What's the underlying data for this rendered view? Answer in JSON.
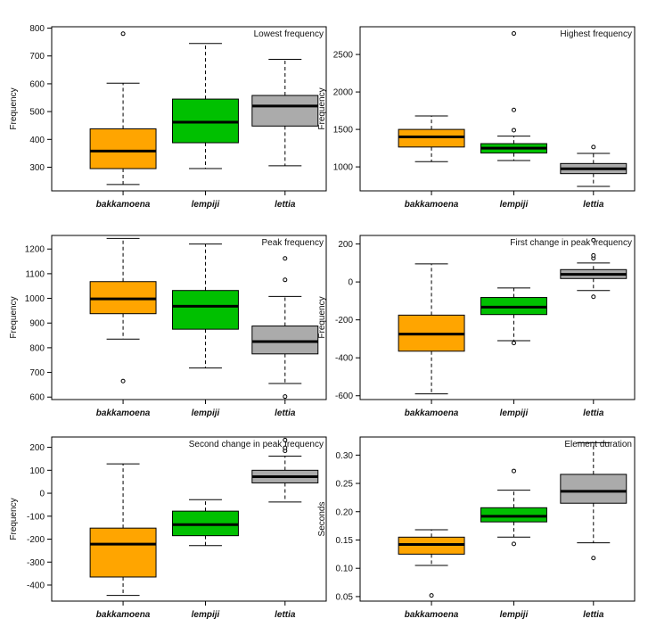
{
  "figure": {
    "type": "boxplot-grid",
    "grid": "3x2",
    "colors": {
      "bakkamoena": "#FFA500",
      "lempiji": "#00C000",
      "lettia": "#ABABAB"
    }
  },
  "chart_data": [
    {
      "type": "box",
      "title": "Lowest frequency",
      "ylabel": "Frequency",
      "xlabel": "",
      "ylim": [
        215,
        805
      ],
      "yticks": [
        300,
        400,
        500,
        600,
        700,
        800
      ],
      "categories": [
        "bakkamoena",
        "lempiji",
        "lettia"
      ],
      "boxes": [
        {
          "category": "bakkamoena",
          "min": 238,
          "q1": 295,
          "median": 358,
          "q3": 438,
          "max": 602,
          "outliers": [
            780
          ]
        },
        {
          "category": "lempiji",
          "min": 295,
          "q1": 388,
          "median": 462,
          "q3": 545,
          "max": 745,
          "outliers": []
        },
        {
          "category": "lettia",
          "min": 305,
          "q1": 448,
          "median": 520,
          "q3": 558,
          "max": 688,
          "outliers": []
        }
      ]
    },
    {
      "type": "box",
      "title": "Highest frequency",
      "ylabel": "Frequency",
      "xlabel": "",
      "ylim": [
        680,
        2870
      ],
      "yticks": [
        1000,
        1500,
        2000,
        2500
      ],
      "categories": [
        "bakkamoena",
        "lempiji",
        "lettia"
      ],
      "boxes": [
        {
          "category": "bakkamoena",
          "min": 1070,
          "q1": 1265,
          "median": 1400,
          "q3": 1500,
          "max": 1680,
          "outliers": []
        },
        {
          "category": "lempiji",
          "min": 1085,
          "q1": 1185,
          "median": 1250,
          "q3": 1310,
          "max": 1410,
          "outliers": [
            1490,
            1760,
            2780
          ]
        },
        {
          "category": "lettia",
          "min": 740,
          "q1": 910,
          "median": 975,
          "q3": 1045,
          "max": 1180,
          "outliers": [
            1265
          ]
        }
      ]
    },
    {
      "type": "box",
      "title": "Peak frequency",
      "ylabel": "Frequency",
      "xlabel": "",
      "ylim": [
        590,
        1255
      ],
      "yticks": [
        600,
        700,
        800,
        900,
        1000,
        1100,
        1200
      ],
      "categories": [
        "bakkamoena",
        "lempiji",
        "lettia"
      ],
      "boxes": [
        {
          "category": "bakkamoena",
          "min": 835,
          "q1": 938,
          "median": 998,
          "q3": 1068,
          "max": 1243,
          "outliers": [
            665
          ]
        },
        {
          "category": "lempiji",
          "min": 718,
          "q1": 875,
          "median": 968,
          "q3": 1032,
          "max": 1220,
          "outliers": []
        },
        {
          "category": "lettia",
          "min": 655,
          "q1": 775,
          "median": 825,
          "q3": 888,
          "max": 1008,
          "outliers": [
            602,
            1075,
            1162
          ]
        }
      ]
    },
    {
      "type": "box",
      "title": "First change in peak frequency",
      "ylabel": "Frequency",
      "xlabel": "",
      "ylim": [
        -620,
        245
      ],
      "yticks": [
        -600,
        -400,
        -200,
        0,
        200
      ],
      "categories": [
        "bakkamoena",
        "lempiji",
        "lettia"
      ],
      "boxes": [
        {
          "category": "bakkamoena",
          "min": -590,
          "q1": -365,
          "median": -275,
          "q3": -175,
          "max": 95,
          "outliers": []
        },
        {
          "category": "lempiji",
          "min": -310,
          "q1": -172,
          "median": -133,
          "q3": -82,
          "max": -32,
          "outliers": [
            -322
          ]
        },
        {
          "category": "lettia",
          "min": -45,
          "q1": 18,
          "median": 40,
          "q3": 65,
          "max": 100,
          "outliers": [
            -78,
            125,
            140,
            220
          ]
        }
      ]
    },
    {
      "type": "box",
      "title": "Second change in peak frequency",
      "ylabel": "Frequency",
      "xlabel": "",
      "ylim": [
        -470,
        245
      ],
      "yticks": [
        -400,
        -300,
        -200,
        -100,
        0,
        100,
        200
      ],
      "categories": [
        "bakkamoena",
        "lempiji",
        "lettia"
      ],
      "boxes": [
        {
          "category": "bakkamoena",
          "min": -445,
          "q1": -365,
          "median": -222,
          "q3": -152,
          "max": 128,
          "outliers": []
        },
        {
          "category": "lempiji",
          "min": -228,
          "q1": -185,
          "median": -137,
          "q3": -78,
          "max": -28,
          "outliers": []
        },
        {
          "category": "lettia",
          "min": -38,
          "q1": 45,
          "median": 72,
          "q3": 100,
          "max": 162,
          "outliers": [
            185,
            198,
            232
          ]
        }
      ]
    },
    {
      "type": "box",
      "title": "Element duration",
      "ylabel": "Seconds",
      "xlabel": "",
      "ylim": [
        0.042,
        0.332
      ],
      "yticks": [
        0.05,
        0.1,
        0.15,
        0.2,
        0.25,
        0.3
      ],
      "ytick_labels": [
        "0.05",
        "0.10",
        "0.15",
        "0.20",
        "0.25",
        "0.30"
      ],
      "categories": [
        "bakkamoena",
        "lempiji",
        "lettia"
      ],
      "boxes": [
        {
          "category": "bakkamoena",
          "min": 0.105,
          "q1": 0.125,
          "median": 0.142,
          "q3": 0.155,
          "max": 0.168,
          "outliers": [
            0.052
          ]
        },
        {
          "category": "lempiji",
          "min": 0.155,
          "q1": 0.182,
          "median": 0.192,
          "q3": 0.207,
          "max": 0.238,
          "outliers": [
            0.143,
            0.272
          ]
        },
        {
          "category": "lettia",
          "min": 0.145,
          "q1": 0.215,
          "median": 0.236,
          "q3": 0.266,
          "max": 0.322,
          "outliers": [
            0.118
          ]
        }
      ]
    }
  ]
}
